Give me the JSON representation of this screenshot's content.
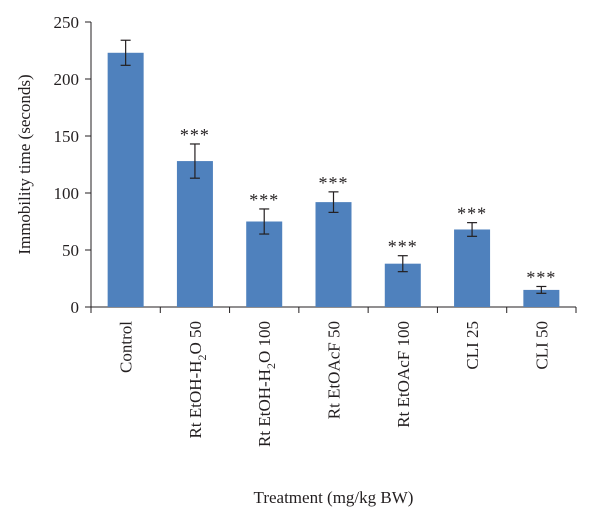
{
  "chart_data": {
    "type": "bar",
    "title": "",
    "xlabel": "Treatment (mg/kg BW)",
    "ylabel": "Immobility time (seconds)",
    "ylim": [
      0,
      250
    ],
    "yticks": [
      "0",
      "50",
      "100",
      "150",
      "200",
      "250"
    ],
    "categories": [
      {
        "pre": "Control",
        "sub": "",
        "mid": "",
        "sub2": "",
        "post": ""
      },
      {
        "pre": "Rt EtOH-H",
        "sub": "2",
        "mid": "O 50",
        "sub2": "",
        "post": ""
      },
      {
        "pre": "Rt EtOH-H",
        "sub": "2",
        "mid": "O 100",
        "sub2": "",
        "post": ""
      },
      {
        "pre": "Rt EtOAcF 50",
        "sub": "",
        "mid": "",
        "sub2": "",
        "post": ""
      },
      {
        "pre": "Rt EtOAcF 100",
        "sub": "",
        "mid": "",
        "sub2": "",
        "post": ""
      },
      {
        "pre": "CLI 25",
        "sub": "",
        "mid": "",
        "sub2": "",
        "post": ""
      },
      {
        "pre": "CLI 50",
        "sub": "",
        "mid": "",
        "sub2": "",
        "post": ""
      }
    ],
    "values": [
      223,
      128,
      75,
      92,
      38,
      68,
      15
    ],
    "errors": [
      11,
      15,
      11,
      9,
      7,
      6,
      3
    ],
    "significance": [
      "",
      "***",
      "***",
      "***",
      "***",
      "***",
      "***"
    ],
    "bar_color": "#4f81bd",
    "grid": false,
    "legend": "none"
  }
}
